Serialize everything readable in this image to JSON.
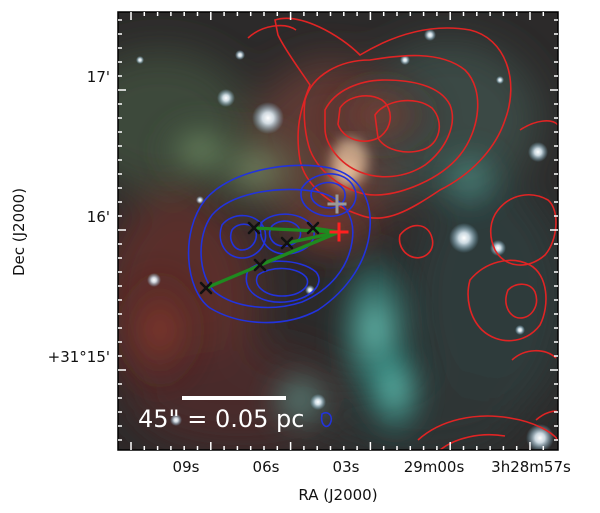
{
  "axes": {
    "xlabel": "RA (J2000)",
    "ylabel": "Dec (J2000)",
    "x_ticks": [
      "09s",
      "06s",
      "03s",
      "29m00s",
      "3h28m57s"
    ],
    "y_ticks": [
      "17'",
      "16'",
      "+31°15'"
    ]
  },
  "scalebar": {
    "label": "45\" = 0.05 pc"
  },
  "colors": {
    "red_contours": "#e02424",
    "blue_contours": "#2233dd",
    "connector_lines": "#1f8a1f",
    "source_markers": "#111111",
    "red_cross": "#ff2020",
    "gray_cross": "#9a9a9a",
    "scalebar": "#ffffff"
  }
}
